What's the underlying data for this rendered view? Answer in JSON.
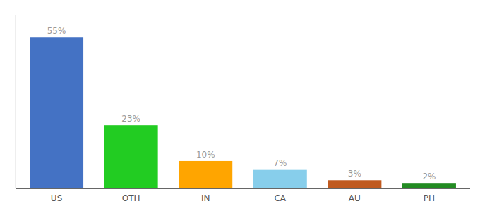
{
  "chart_data": {
    "type": "bar",
    "categories": [
      "US",
      "OTH",
      "IN",
      "CA",
      "AU",
      "PH"
    ],
    "values": [
      55,
      23,
      10,
      7,
      3,
      2
    ],
    "colors": [
      "#4472C4",
      "#22CC22",
      "#FFA500",
      "#87CEEB",
      "#C05A1F",
      "#228B22"
    ],
    "ylim": [
      0,
      63
    ],
    "data_labels": true,
    "value_labels": [
      "55%",
      "23%",
      "10%",
      "7%",
      "3%",
      "2%"
    ],
    "tick_labels": "x",
    "grid": false
  }
}
